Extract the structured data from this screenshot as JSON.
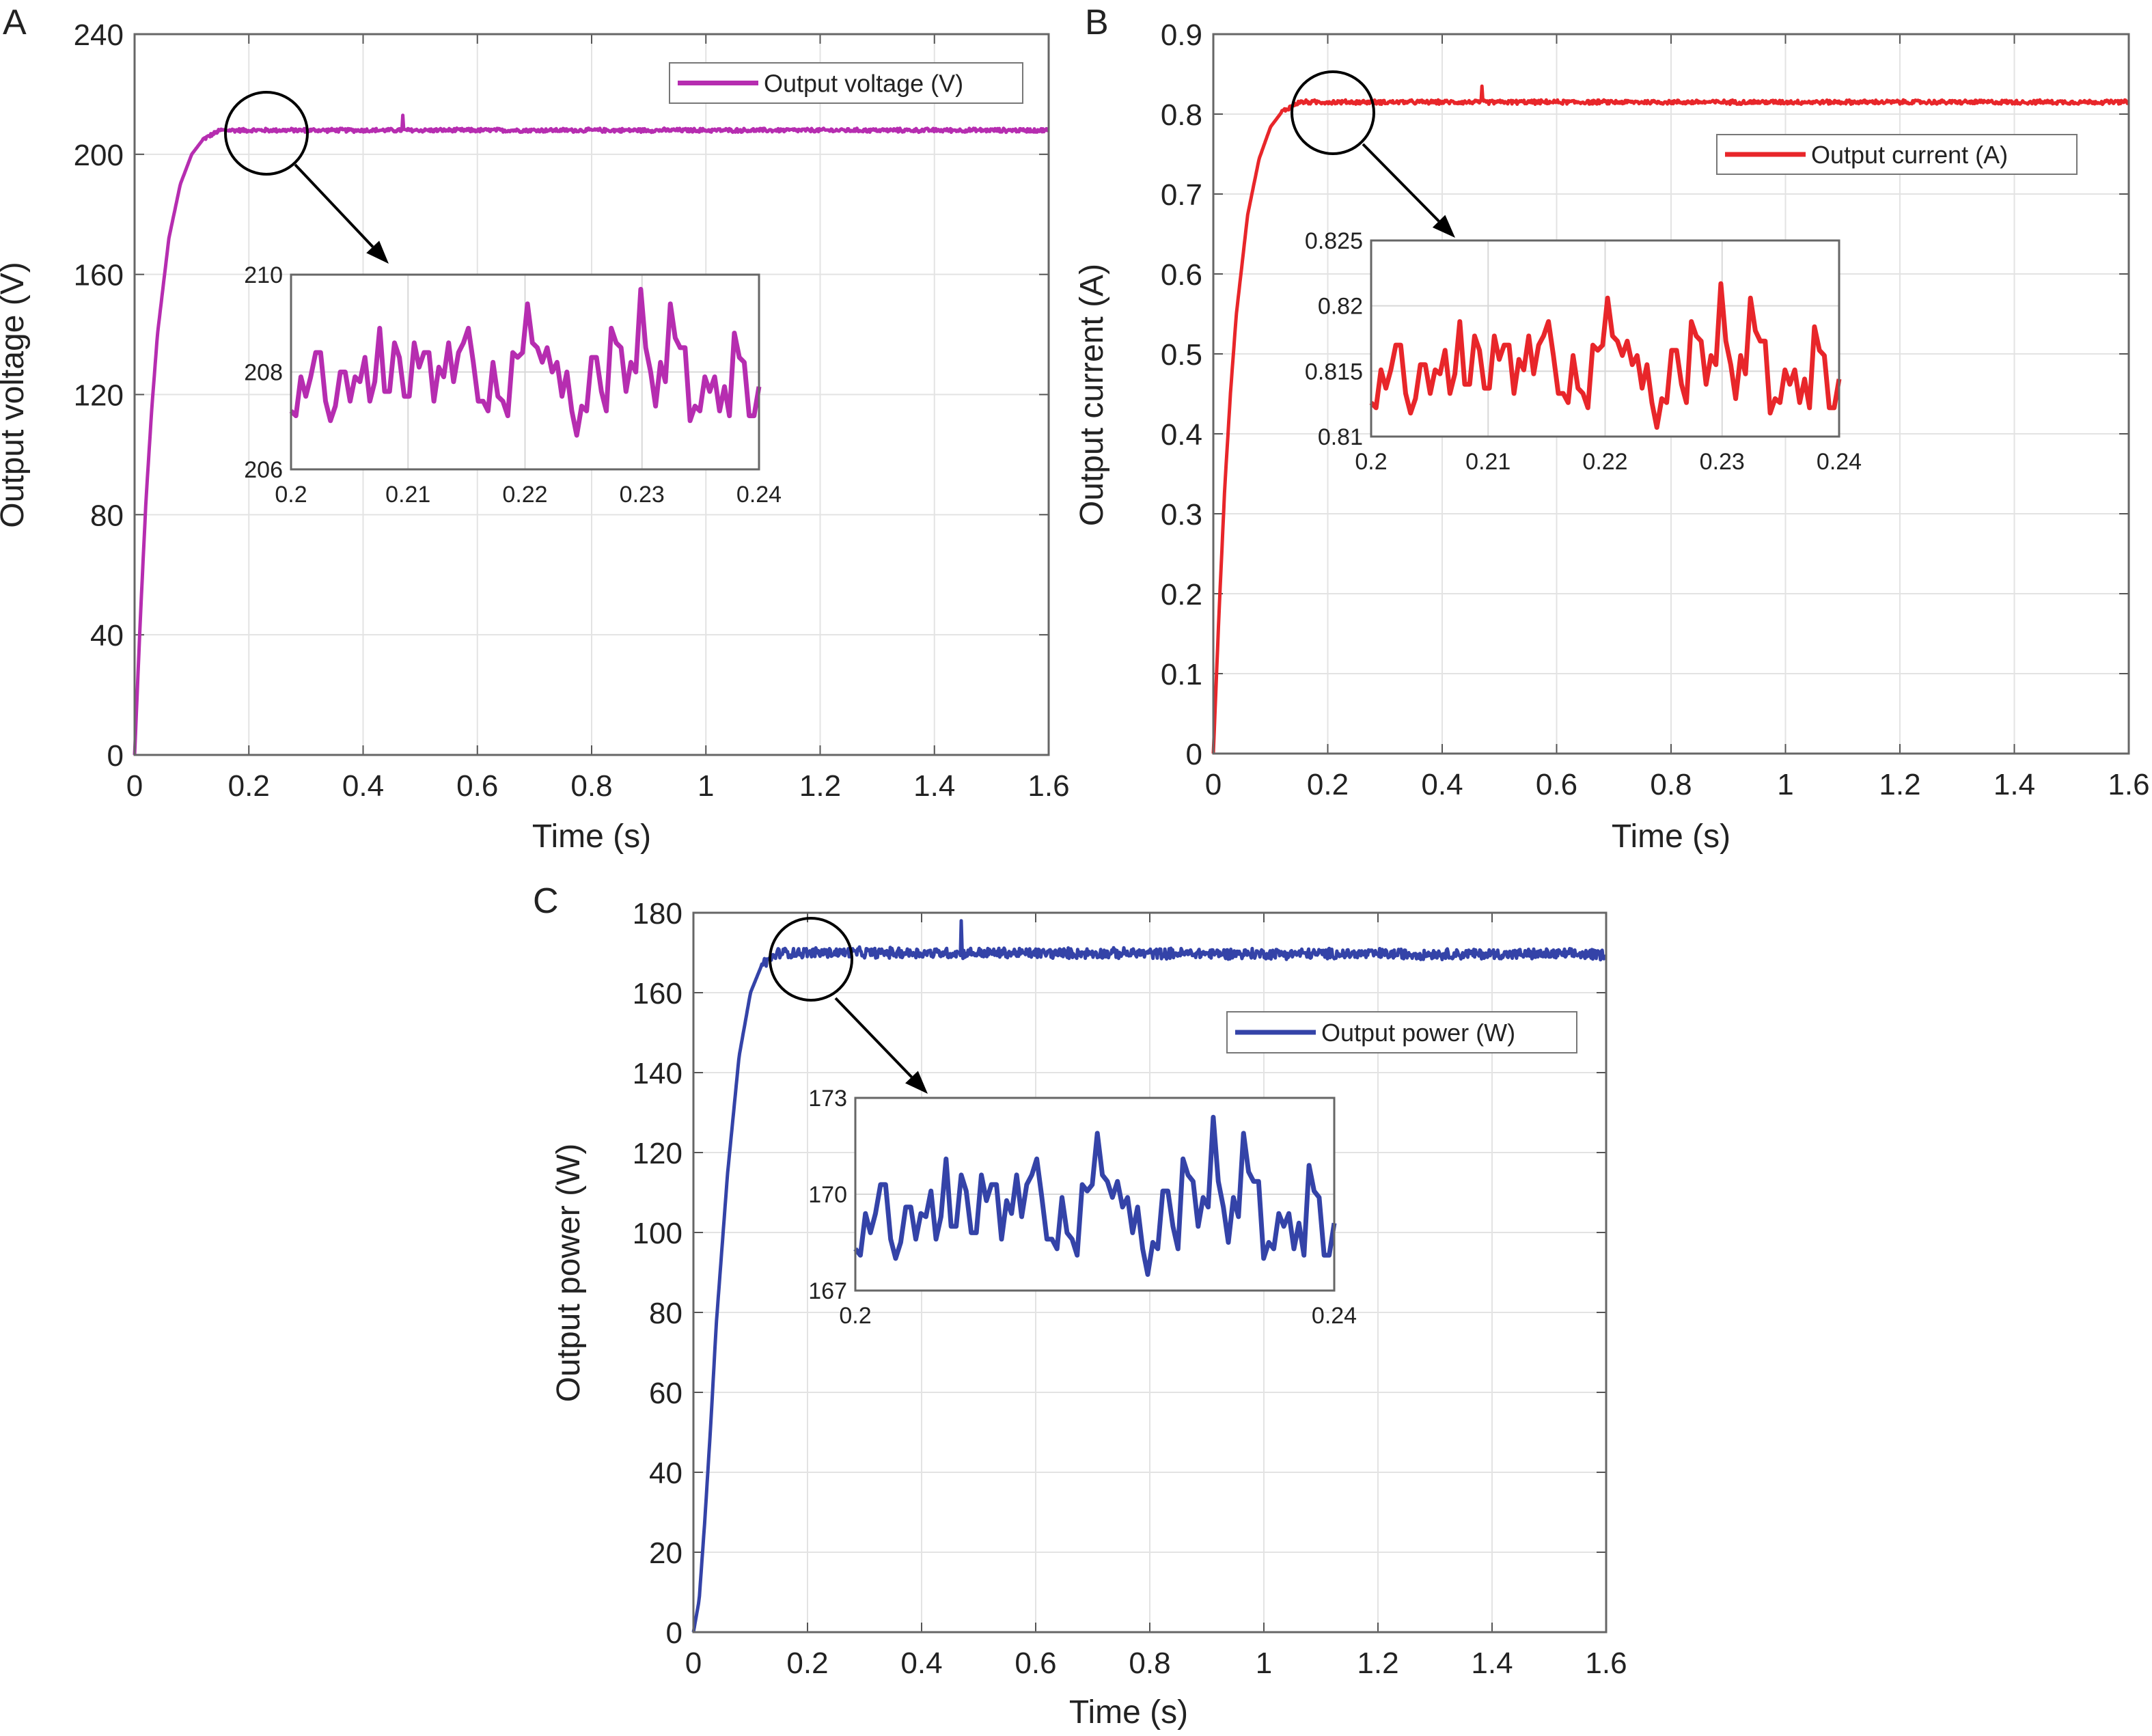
{
  "chart_data": [
    {
      "panel_letter": "A",
      "type": "line",
      "xlabel": "Time (s)",
      "ylabel": "Output voltage (V)",
      "xlim": [
        0,
        1.6
      ],
      "ylim": [
        0,
        240
      ],
      "xticks": [
        "0",
        "0.2",
        "0.4",
        "0.6",
        "0.8",
        "1",
        "1.2",
        "1.4",
        "1.6"
      ],
      "yticks": [
        "0",
        "40",
        "80",
        "120",
        "160",
        "200",
        "240"
      ],
      "grid": true,
      "legend": "Output voltage (V)",
      "legend_position": "top-right",
      "color": "#B62DB0",
      "series": {
        "name": "Output voltage (V)",
        "t": [
          0,
          0.01,
          0.02,
          0.03,
          0.04,
          0.06,
          0.08,
          0.1,
          0.12,
          0.15,
          0.2,
          1.6
        ],
        "y": [
          0,
          45,
          85,
          115,
          140,
          172,
          190,
          200,
          205,
          208,
          208,
          208
        ],
        "ripple_amplitude": 1.5,
        "spike": {
          "t": 0.47,
          "y": 213
        }
      },
      "inset": {
        "xlim": [
          0.2,
          0.24
        ],
        "ylim": [
          206,
          210
        ],
        "xticks": [
          "0.2",
          "0.21",
          "0.22",
          "0.23",
          "0.24"
        ],
        "yticks": [
          "206",
          "208",
          "210"
        ],
        "y": [
          207.2,
          207.1,
          207.9,
          207.5,
          207.9,
          208.4,
          208.4,
          207.4,
          207.0,
          207.3,
          208.0,
          208.0,
          207.4,
          207.9,
          207.8,
          208.3,
          207.4,
          207.8,
          208.9,
          207.6,
          207.6,
          208.6,
          208.3,
          207.5,
          207.5,
          208.6,
          208.1,
          208.4,
          208.4,
          207.4,
          208.1,
          207.9,
          208.6,
          207.8,
          208.4,
          208.6,
          208.9,
          208.2,
          207.4,
          207.4,
          207.2,
          208.2,
          207.5,
          207.4,
          207.1,
          208.4,
          208.3,
          208.4,
          209.4,
          208.6,
          208.5,
          208.2,
          208.5,
          208.0,
          208.2,
          207.5,
          208.0,
          207.2,
          206.7,
          207.3,
          207.2,
          208.3,
          208.3,
          207.6,
          207.2,
          208.9,
          208.6,
          208.5,
          207.6,
          208.2,
          208.0,
          209.7,
          208.5,
          208.0,
          207.3,
          208.2,
          207.8,
          209.4,
          208.7,
          208.5,
          208.5,
          207.0,
          207.3,
          207.2,
          207.9,
          207.6,
          207.9,
          207.2,
          207.7,
          207.1,
          208.8,
          208.3,
          208.2,
          207.1,
          207.1,
          207.7
        ]
      }
    },
    {
      "panel_letter": "B",
      "type": "line",
      "xlabel": "Time (s)",
      "ylabel": "Output current (A)",
      "xlim": [
        0,
        1.6
      ],
      "ylim": [
        0,
        0.9
      ],
      "xticks": [
        "0",
        "0.2",
        "0.4",
        "0.6",
        "0.8",
        "1",
        "1.2",
        "1.4",
        "1.6"
      ],
      "yticks": [
        "0",
        "0.1",
        "0.2",
        "0.3",
        "0.4",
        "0.5",
        "0.6",
        "0.7",
        "0.8",
        "0.9"
      ],
      "grid": true,
      "legend": "Output current (A)",
      "legend_position": "top-right",
      "color": "#E8262A",
      "series": {
        "name": "Output current (A)",
        "t": [
          0,
          0.01,
          0.02,
          0.03,
          0.04,
          0.06,
          0.08,
          0.1,
          0.12,
          0.15,
          0.2,
          1.6
        ],
        "y": [
          0,
          0.176,
          0.333,
          0.451,
          0.548,
          0.674,
          0.744,
          0.784,
          0.803,
          0.815,
          0.815,
          0.815
        ],
        "ripple_amplitude": 0.006,
        "spike": {
          "t": 0.47,
          "y": 0.835
        }
      },
      "inset": {
        "xlim": [
          0.2,
          0.24
        ],
        "ylim": [
          0.81,
          0.825
        ],
        "xticks": [
          "0.2",
          "0.21",
          "0.22",
          "0.23",
          "0.24"
        ],
        "yticks": [
          "0.81",
          "0.815",
          "0.82",
          "0.825"
        ],
        "y": [
          0.8126,
          0.8122,
          0.8151,
          0.8137,
          0.8151,
          0.817,
          0.817,
          0.8133,
          0.8118,
          0.8129,
          0.8155,
          0.8155,
          0.8133,
          0.8151,
          0.8148,
          0.8166,
          0.8133,
          0.8148,
          0.8188,
          0.814,
          0.814,
          0.8177,
          0.8166,
          0.8137,
          0.8137,
          0.8177,
          0.8159,
          0.817,
          0.817,
          0.8133,
          0.8159,
          0.8151,
          0.8177,
          0.8148,
          0.817,
          0.8177,
          0.8188,
          0.8162,
          0.8133,
          0.8133,
          0.8126,
          0.8162,
          0.8137,
          0.8133,
          0.8122,
          0.817,
          0.8166,
          0.817,
          0.8206,
          0.8177,
          0.8173,
          0.8162,
          0.8173,
          0.8155,
          0.8162,
          0.8137,
          0.8155,
          0.8126,
          0.8107,
          0.8129,
          0.8126,
          0.8166,
          0.8166,
          0.814,
          0.8126,
          0.8188,
          0.8177,
          0.8173,
          0.814,
          0.8162,
          0.8155,
          0.8217,
          0.8173,
          0.8155,
          0.8129,
          0.8162,
          0.8148,
          0.8206,
          0.8181,
          0.8173,
          0.8173,
          0.8118,
          0.8129,
          0.8126,
          0.8151,
          0.814,
          0.8151,
          0.8126,
          0.8144,
          0.8122,
          0.8184,
          0.8166,
          0.8162,
          0.8122,
          0.8122,
          0.8144
        ]
      }
    },
    {
      "panel_letter": "C",
      "type": "line",
      "xlabel": "Time (s)",
      "ylabel": "Output power (W)",
      "xlim": [
        0,
        1.6
      ],
      "ylim": [
        0,
        180
      ],
      "xticks": [
        "0",
        "0.2",
        "0.4",
        "0.6",
        "0.8",
        "1",
        "1.2",
        "1.4",
        "1.6"
      ],
      "yticks": [
        "0",
        "20",
        "40",
        "60",
        "80",
        "100",
        "120",
        "140",
        "160",
        "180"
      ],
      "grid": true,
      "legend": "Output power (W)",
      "legend_position": "top-right",
      "color": "#3443A8",
      "series": {
        "name": "Output power (W)",
        "t": [
          0,
          0.01,
          0.02,
          0.03,
          0.04,
          0.06,
          0.08,
          0.1,
          0.12,
          0.15,
          0.2,
          1.6
        ],
        "y": [
          0,
          8,
          28,
          51,
          77,
          115,
          144,
          160,
          167,
          170,
          170,
          169.6
        ],
        "ripple_amplitude": 3,
        "spike": {
          "t": 0.47,
          "y": 178
        }
      },
      "inset": {
        "xlim": [
          0.2,
          0.24
        ],
        "ylim": [
          167,
          173
        ],
        "xticks": [
          "0.2",
          "0.24"
        ],
        "yticks": [
          "167",
          "170",
          "173"
        ],
        "y": [
          168.3,
          168.1,
          169.4,
          168.8,
          169.4,
          170.3,
          170.3,
          168.6,
          168.0,
          168.5,
          169.6,
          169.6,
          168.6,
          169.4,
          169.3,
          170.1,
          168.6,
          169.3,
          171.1,
          169.0,
          169.0,
          170.6,
          170.1,
          168.8,
          168.8,
          170.6,
          169.8,
          170.3,
          170.3,
          168.6,
          169.8,
          169.4,
          170.6,
          169.3,
          170.3,
          170.6,
          171.1,
          169.9,
          168.6,
          168.6,
          168.3,
          169.9,
          168.8,
          168.6,
          168.1,
          170.3,
          170.1,
          170.3,
          171.9,
          170.6,
          170.4,
          169.9,
          170.4,
          169.6,
          169.9,
          168.8,
          169.6,
          168.3,
          167.5,
          168.5,
          168.3,
          170.1,
          170.1,
          169.0,
          168.3,
          171.1,
          170.6,
          170.4,
          169.0,
          169.9,
          169.6,
          172.4,
          170.4,
          169.6,
          168.5,
          169.9,
          169.3,
          171.9,
          170.7,
          170.4,
          170.4,
          168.0,
          168.5,
          168.3,
          169.4,
          169.0,
          169.4,
          168.3,
          169.1,
          168.1,
          170.9,
          170.1,
          169.9,
          168.1,
          168.1,
          169.1
        ]
      }
    }
  ]
}
